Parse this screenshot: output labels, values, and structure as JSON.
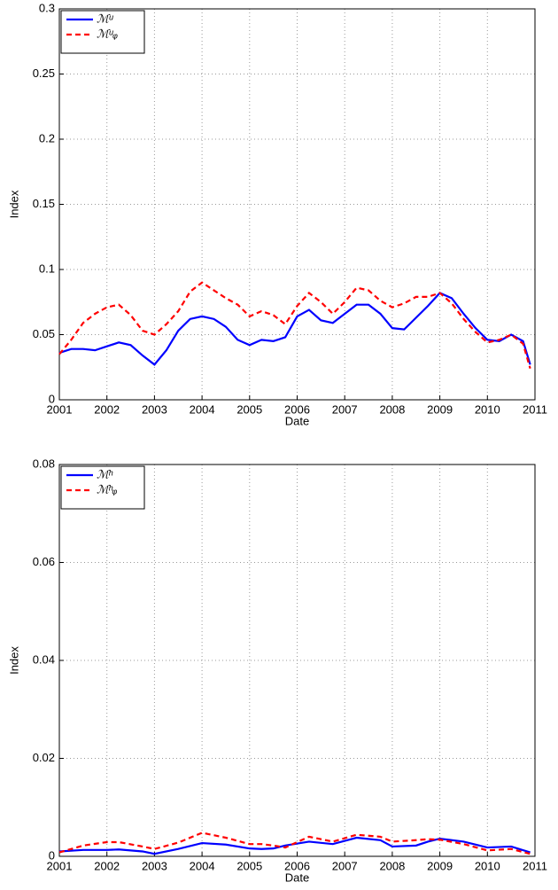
{
  "chart_data": [
    {
      "type": "line",
      "x_label": "Date",
      "y_label": "Index",
      "x": [
        2001,
        2001.25,
        2001.5,
        2001.75,
        2002,
        2002.25,
        2002.5,
        2002.75,
        2003,
        2003.25,
        2003.5,
        2003.75,
        2004,
        2004.25,
        2004.5,
        2004.75,
        2005,
        2005.25,
        2005.5,
        2005.75,
        2006,
        2006.25,
        2006.5,
        2006.75,
        2007,
        2007.25,
        2007.5,
        2007.75,
        2008,
        2008.25,
        2008.5,
        2008.75,
        2009,
        2009.25,
        2009.5,
        2009.75,
        2010,
        2010.25,
        2010.5,
        2010.75,
        2010.9
      ],
      "series": [
        {
          "name": "ℳᵘ",
          "color": "#0000ff",
          "dash": false,
          "values": [
            0.036,
            0.039,
            0.039,
            0.038,
            0.041,
            0.044,
            0.042,
            0.034,
            0.027,
            0.038,
            0.053,
            0.062,
            0.064,
            0.062,
            0.056,
            0.046,
            0.042,
            0.046,
            0.045,
            0.048,
            0.064,
            0.069,
            0.061,
            0.059,
            0.066,
            0.073,
            0.073,
            0.066,
            0.055,
            0.054,
            0.063,
            0.072,
            0.082,
            0.078,
            0.066,
            0.055,
            0.046,
            0.045,
            0.05,
            0.045,
            0.027
          ]
        },
        {
          "name": "ℳᵘᵩ",
          "color": "#ff0000",
          "dash": true,
          "values": [
            0.035,
            0.046,
            0.059,
            0.066,
            0.071,
            0.073,
            0.065,
            0.053,
            0.05,
            0.058,
            0.068,
            0.083,
            0.09,
            0.084,
            0.078,
            0.073,
            0.064,
            0.068,
            0.065,
            0.058,
            0.072,
            0.082,
            0.075,
            0.066,
            0.075,
            0.086,
            0.084,
            0.076,
            0.071,
            0.074,
            0.079,
            0.079,
            0.082,
            0.074,
            0.062,
            0.052,
            0.044,
            0.046,
            0.05,
            0.043,
            0.024
          ]
        }
      ],
      "xlim": [
        2001,
        2011
      ],
      "xticks": [
        2001,
        2002,
        2003,
        2004,
        2005,
        2006,
        2007,
        2008,
        2009,
        2010,
        2011
      ],
      "ylim": [
        0,
        0.3
      ],
      "yticks": [
        0,
        0.05,
        0.1,
        0.15,
        0.2,
        0.25,
        0.3
      ],
      "grid": true,
      "legend": "upper-left"
    },
    {
      "type": "line",
      "x_label": "Date",
      "y_label": "Index",
      "x": [
        2001,
        2001.5,
        2002,
        2002.25,
        2002.75,
        2003,
        2003.5,
        2004,
        2004.5,
        2005,
        2005.25,
        2005.5,
        2005.75,
        2006.25,
        2006.75,
        2007.25,
        2007.75,
        2008,
        2008.5,
        2008.75,
        2009,
        2009.5,
        2010,
        2010.5,
        2010.9
      ],
      "series": [
        {
          "name": "ℳʰ",
          "color": "#0000ff",
          "dash": false,
          "values": [
            0.001,
            0.0013,
            0.0013,
            0.0014,
            0.001,
            0.0005,
            0.0015,
            0.0027,
            0.0024,
            0.0016,
            0.0015,
            0.0016,
            0.0022,
            0.003,
            0.0025,
            0.0038,
            0.0033,
            0.002,
            0.0022,
            0.003,
            0.0036,
            0.003,
            0.0018,
            0.002,
            0.0008
          ]
        },
        {
          "name": "ℳʰᵩ",
          "color": "#ff0000",
          "dash": true,
          "values": [
            0.0008,
            0.0022,
            0.0029,
            0.0029,
            0.002,
            0.0015,
            0.0028,
            0.0048,
            0.0038,
            0.0025,
            0.0025,
            0.0022,
            0.0018,
            0.004,
            0.003,
            0.0044,
            0.004,
            0.003,
            0.0033,
            0.0035,
            0.0034,
            0.0025,
            0.0012,
            0.0015,
            0.0005
          ]
        }
      ],
      "xlim": [
        2001,
        2011
      ],
      "xticks": [
        2001,
        2002,
        2003,
        2004,
        2005,
        2006,
        2007,
        2008,
        2009,
        2010,
        2011
      ],
      "ylim": [
        0,
        0.08
      ],
      "yticks": [
        0,
        0.02,
        0.04,
        0.06,
        0.08
      ],
      "grid": true,
      "legend": "upper-left"
    }
  ]
}
